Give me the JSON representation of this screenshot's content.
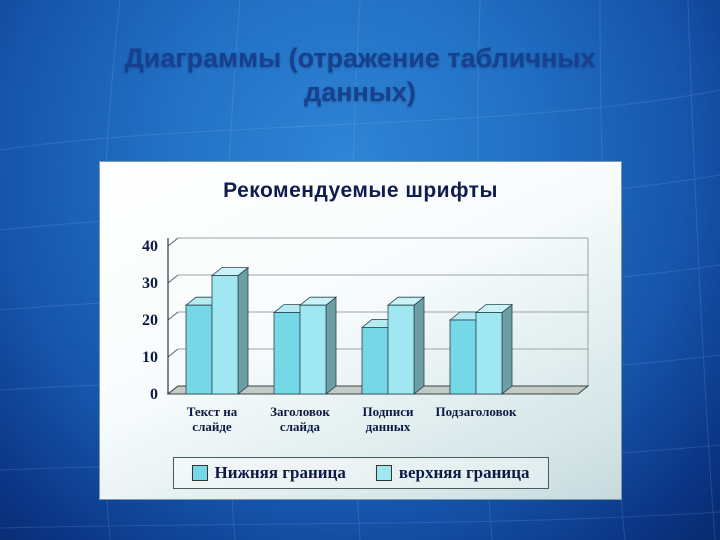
{
  "slide": {
    "title_lines": [
      "Диаграммы (отражение табличных",
      "данных)"
    ]
  },
  "chart_data": {
    "type": "bar",
    "style": "3d-column",
    "title": "Рекомендуемые шрифты",
    "categories": [
      "Текст на слайде",
      "Заголовок слайда",
      "Подписи данных",
      "Подзаголовок"
    ],
    "category_lines": [
      [
        "Текст на",
        "слайде"
      ],
      [
        "Заголовок",
        "слайда"
      ],
      [
        "Подписи",
        "данных"
      ],
      [
        "Подзаголовок"
      ]
    ],
    "series": [
      {
        "name": "Нижняя граница",
        "color": "#76d8e6",
        "values": [
          24,
          22,
          18,
          20
        ]
      },
      {
        "name": "верхняя граница",
        "color": "#9fe8f1",
        "values": [
          32,
          24,
          24,
          22
        ]
      }
    ],
    "xlabel": "",
    "ylabel": "",
    "ylim": [
      0,
      40
    ],
    "yticks": [
      0,
      10,
      20,
      30,
      40
    ],
    "legend_position": "bottom",
    "grid": true
  },
  "colors": {
    "background_center": "#2f85d6",
    "background_edge": "#082a6e",
    "slide_title_text": "#17418f",
    "chart_text": "#0c1a45",
    "chart_panel_top": "#ffffff",
    "chart_panel_bottom": "#c6dade"
  }
}
